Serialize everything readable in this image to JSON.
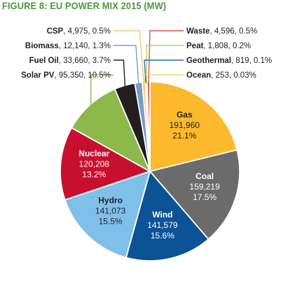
{
  "header": {
    "title": "FIGURE 8: EU POWER MIX 2015 (MW)"
  },
  "chart_data": {
    "type": "pie",
    "title": "FIGURE 8: EU POWER MIX 2015 (MW)",
    "slices": [
      {
        "name": "Gas",
        "value": 191960,
        "value_label": "191,960",
        "percent": "21.1%",
        "color": "#fbb92b"
      },
      {
        "name": "Coal",
        "value": 159219,
        "value_label": "159,219",
        "percent": "17.5%",
        "color": "#6b6b6b"
      },
      {
        "name": "Wind",
        "value": 141579,
        "value_label": "141,579",
        "percent": "15.6%",
        "color": "#0b5394"
      },
      {
        "name": "Hydro",
        "value": 141073,
        "value_label": "141,073",
        "percent": "15.5%",
        "color": "#7fc0ea"
      },
      {
        "name": "Nuclear",
        "value": 120208,
        "value_label": "120,208",
        "percent": "13.2%",
        "color": "#c8102e"
      },
      {
        "name": "Solar PV",
        "value": 95350,
        "value_label": "95,350",
        "percent": "10.5%",
        "color": "#8db84a"
      },
      {
        "name": "Fuel Oil",
        "value": 33660,
        "value_label": "33,660",
        "percent": "3.7%",
        "color": "#231f20"
      },
      {
        "name": "Biomass",
        "value": 12140,
        "value_label": "12,140",
        "percent": "1.3%",
        "color": "#7a9cc6"
      },
      {
        "name": "CSP",
        "value": 4975,
        "value_label": "4,975",
        "percent": "0.5%",
        "color": "#f6c77a"
      },
      {
        "name": "Ocean",
        "value": 253,
        "value_label": "253",
        "percent": "0.03%",
        "color": "#f2d36b"
      },
      {
        "name": "Geothermal",
        "value": 819,
        "value_label": "819",
        "percent": "0.1%",
        "color": "#1f6fb5"
      },
      {
        "name": "Peat",
        "value": 1808,
        "value_label": "1,808",
        "percent": "0.2%",
        "color": "#b5d35c"
      },
      {
        "name": "Waste",
        "value": 4596,
        "value_label": "4,596",
        "percent": "0.5%",
        "color": "#d9534f"
      }
    ],
    "inside_labels": [
      "Gas",
      "Coal",
      "Wind",
      "Hydro",
      "Nuclear"
    ],
    "outside_labels_left": [
      "CSP",
      "Biomass",
      "Fuel Oil",
      "Solar PV"
    ],
    "outside_labels_right": [
      "Waste",
      "Peat",
      "Geothermal",
      "Ocean"
    ]
  }
}
